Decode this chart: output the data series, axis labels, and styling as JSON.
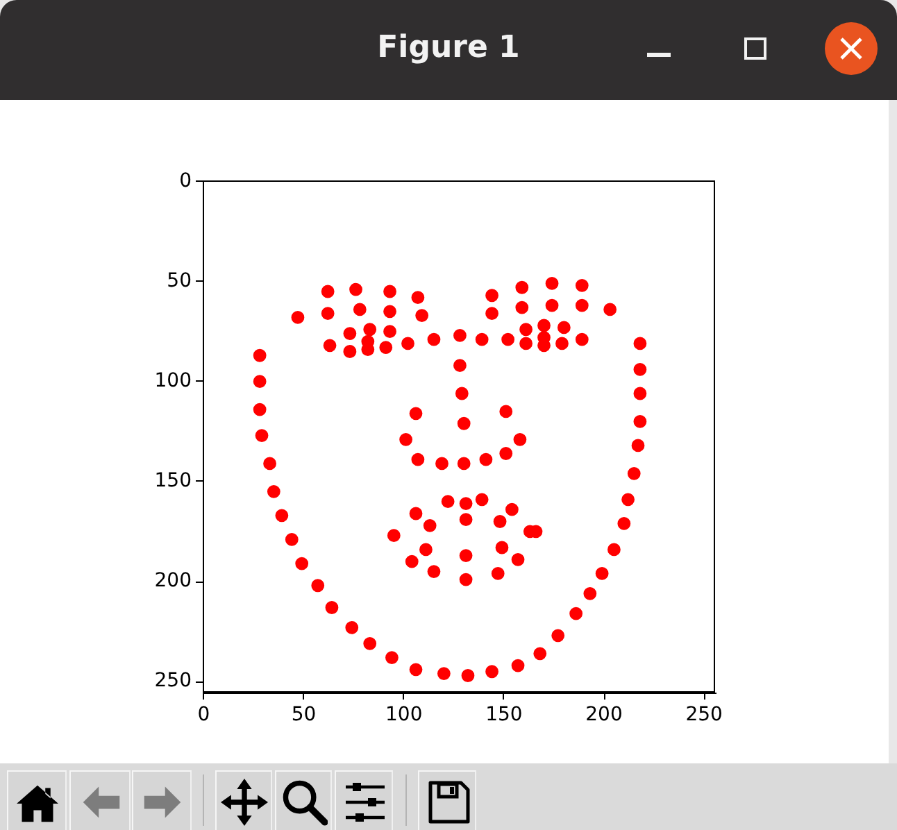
{
  "chart_data": {
    "type": "scatter",
    "title": "Figure 1",
    "x": [
      28,
      28,
      28,
      29,
      33,
      35,
      39,
      44,
      49,
      57,
      64,
      74,
      83,
      94,
      106,
      120,
      132,
      144,
      157,
      168,
      177,
      186,
      193,
      199,
      205,
      210,
      212,
      215,
      217,
      218,
      218,
      218,
      218,
      47,
      62,
      76,
      93,
      107,
      109,
      93,
      78,
      62,
      144,
      159,
      174,
      189,
      203,
      189,
      174,
      159,
      144,
      63,
      73,
      83,
      93,
      102,
      91,
      82,
      73,
      82,
      115,
      139,
      152,
      161,
      170,
      180,
      189,
      179,
      170,
      161,
      170,
      128,
      128,
      129,
      130,
      106,
      101,
      107,
      119,
      130,
      141,
      151,
      158,
      151,
      95,
      106,
      122,
      131,
      139,
      154,
      163,
      166,
      157,
      147,
      131,
      115,
      104,
      111,
      131,
      149,
      148,
      131,
      113
    ],
    "values": [
      87,
      100,
      114,
      127,
      141,
      155,
      167,
      179,
      191,
      202,
      213,
      223,
      231,
      238,
      244,
      246,
      247,
      245,
      242,
      236,
      227,
      216,
      206,
      196,
      184,
      171,
      159,
      146,
      132,
      120,
      106,
      94,
      81,
      68,
      55,
      54,
      55,
      58,
      67,
      65,
      64,
      66,
      57,
      53,
      51,
      52,
      64,
      62,
      62,
      63,
      66,
      82,
      76,
      74,
      75,
      81,
      83,
      84,
      85,
      80,
      79,
      79,
      79,
      74,
      72,
      73,
      79,
      81,
      82,
      81,
      78,
      77,
      92,
      106,
      121,
      116,
      129,
      139,
      141,
      141,
      139,
      136,
      129,
      115,
      177,
      166,
      160,
      161,
      159,
      164,
      175,
      175,
      189,
      196,
      199,
      195,
      190,
      184,
      187,
      183,
      170,
      169,
      172
    ],
    "color": "#ff0000",
    "marker": "circle",
    "xlim": [
      -0.5,
      255.5
    ],
    "ylim": [
      255.5,
      -0.5
    ],
    "xticks": [
      0,
      50,
      100,
      150,
      200,
      250
    ],
    "yticks": [
      0,
      50,
      100,
      150,
      200,
      250
    ],
    "grid": false,
    "legend": false
  }
}
